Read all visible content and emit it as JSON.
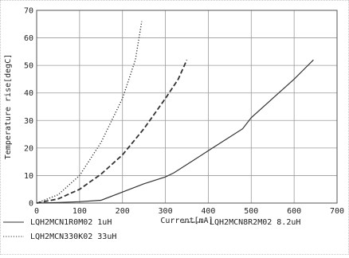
{
  "chart_data": {
    "type": "line",
    "title": "",
    "xlabel": "Current[mA]",
    "ylabel": "Temperature rise[degC]",
    "xlim": [
      0,
      700
    ],
    "ylim": [
      0,
      70
    ],
    "xticks": [
      0,
      100,
      200,
      300,
      400,
      500,
      600,
      700
    ],
    "yticks": [
      0,
      10,
      20,
      30,
      40,
      50,
      60,
      70
    ],
    "grid": true,
    "legend_position": "bottom",
    "series": [
      {
        "name": "LQH2MCN1R0M02 1uH",
        "style": "solid",
        "color": "#333333",
        "x": [
          0,
          50,
          100,
          150,
          200,
          250,
          300,
          320,
          350,
          400,
          450,
          480,
          500,
          550,
          600,
          645
        ],
        "y": [
          0,
          0.2,
          0.5,
          1,
          4,
          7,
          9.5,
          11,
          14,
          19,
          24,
          27,
          31,
          38,
          45,
          52
        ]
      },
      {
        "name": "LQH2MCN8R2M02 8.2uH",
        "style": "dashed",
        "color": "#333333",
        "x": [
          0,
          50,
          100,
          150,
          200,
          250,
          300,
          330,
          350
        ],
        "y": [
          0,
          1.5,
          5,
          10.5,
          17.5,
          27,
          38,
          45,
          52
        ]
      },
      {
        "name": "LQH2MCN330K02 33uH",
        "style": "dotted",
        "color": "#333333",
        "x": [
          0,
          50,
          100,
          150,
          200,
          230,
          245
        ],
        "y": [
          0,
          3,
          10,
          22,
          38,
          52,
          66
        ]
      }
    ]
  }
}
